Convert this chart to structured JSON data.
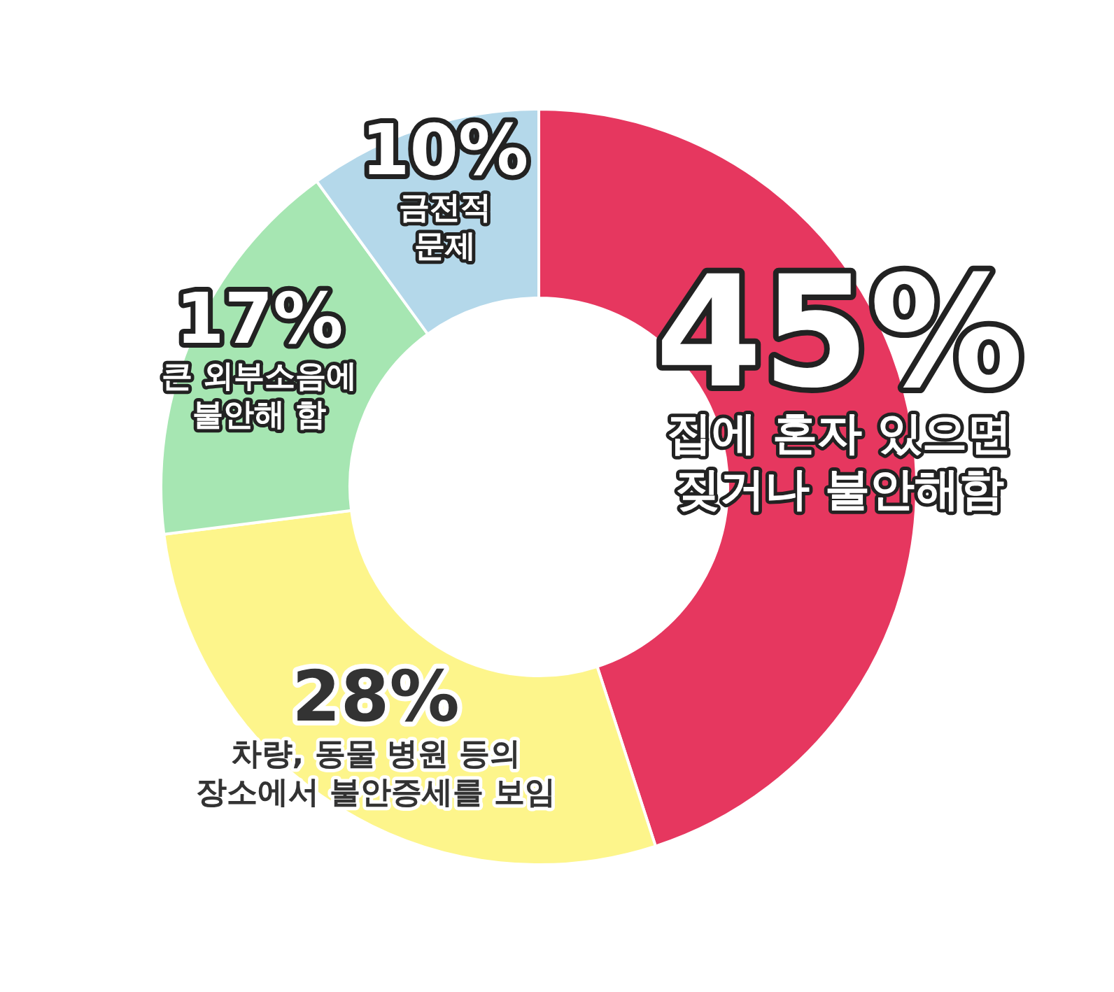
{
  "chart_data": {
    "type": "donut",
    "categories": [
      "집에 혼자 있으면\n짖거나 불안해함",
      "차량, 동물 병원 등의\n장소에서 불안증세를 보임",
      "큰 외부소음에\n불안해 함",
      "금전적\n문제"
    ],
    "values": [
      45,
      28,
      17,
      10
    ],
    "value_labels": [
      "45%",
      "28%",
      "17%",
      "10%"
    ],
    "colors": [
      "#e6375f",
      "#fdf58b",
      "#a6e6b2",
      "#b4d8ea"
    ],
    "legend": false
  }
}
